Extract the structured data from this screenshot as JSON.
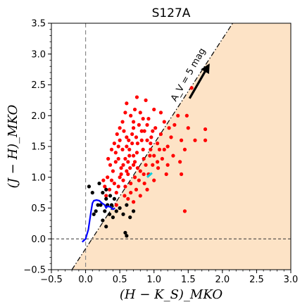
{
  "chart_data": {
    "type": "scatter",
    "title": "S127A",
    "xlabel": "(H − K_S)_MKO",
    "ylabel": "(J − H)_MKO",
    "xlim": [
      -0.5,
      3.0
    ],
    "ylim": [
      -0.5,
      3.5
    ],
    "x_ticks": [
      "−0.5",
      "0.0",
      "0.5",
      "1.0",
      "1.5",
      "2.0",
      "2.5",
      "3.0"
    ],
    "x_tick_values": [
      -0.5,
      0.0,
      0.5,
      1.0,
      1.5,
      2.0,
      2.5,
      3.0
    ],
    "y_ticks": [
      "−0.5",
      "0.0",
      "0.5",
      "1.0",
      "1.5",
      "2.0",
      "2.5",
      "3.0",
      "3.5"
    ],
    "y_tick_values": [
      -0.5,
      0.0,
      0.5,
      1.0,
      1.5,
      2.0,
      2.5,
      3.0,
      3.5
    ],
    "grid": false,
    "colors": {
      "region_fill": "#fde3c6",
      "red_points": "#ff0000",
      "black_points": "#000000",
      "main_sequence": "#0000ff",
      "cyan_segment": "#00d0e0"
    },
    "reddening_line": {
      "points": [
        [
          -0.2,
          -0.5
        ],
        [
          2.15,
          3.5
        ]
      ]
    },
    "shaded_region": {
      "polygon": [
        [
          -0.2,
          -0.5
        ],
        [
          2.15,
          3.5
        ],
        [
          3.0,
          3.5
        ],
        [
          3.0,
          -0.5
        ]
      ]
    },
    "reference_lines": {
      "vertical_x": 0.0,
      "horizontal_y": 0.0
    },
    "annotation": {
      "text": "A_V = 5 mag",
      "arrow_from": [
        1.52,
        2.28
      ],
      "arrow_to": [
        1.8,
        2.82
      ]
    },
    "main_sequence_curve": {
      "x": [
        -0.05,
        0.0,
        0.04,
        0.06,
        0.08,
        0.1,
        0.12,
        0.16,
        0.2,
        0.24,
        0.28,
        0.3,
        0.32,
        0.36,
        0.4,
        0.43
      ],
      "y": [
        -0.05,
        0.0,
        0.15,
        0.3,
        0.45,
        0.58,
        0.62,
        0.63,
        0.62,
        0.58,
        0.55,
        0.5,
        0.53,
        0.52,
        0.48,
        0.5
      ]
    },
    "cyan_segment": {
      "x": [
        0.9,
        0.97
      ],
      "y": [
        1.0,
        1.07
      ]
    },
    "series": [
      {
        "color": "red",
        "points": [
          [
            0.55,
            0.95
          ],
          [
            0.62,
            1.05
          ],
          [
            0.7,
            1.2
          ],
          [
            0.48,
            0.85
          ],
          [
            0.58,
            1.3
          ],
          [
            0.75,
            1.4
          ],
          [
            0.66,
            0.9
          ],
          [
            0.8,
            1.1
          ],
          [
            0.52,
            1.15
          ],
          [
            0.6,
            1.5
          ],
          [
            0.72,
            1.0
          ],
          [
            0.85,
            1.3
          ],
          [
            0.9,
            1.6
          ],
          [
            0.68,
            1.7
          ],
          [
            0.78,
            1.85
          ],
          [
            0.95,
            1.45
          ],
          [
            1.05,
            1.55
          ],
          [
            0.5,
            1.0
          ],
          [
            0.45,
            0.75
          ],
          [
            0.42,
            0.9
          ],
          [
            0.57,
            0.7
          ],
          [
            0.63,
            1.6
          ],
          [
            0.7,
            1.9
          ],
          [
            0.82,
            1.6
          ],
          [
            0.88,
            1.2
          ],
          [
            0.98,
            1.2
          ],
          [
            1.0,
            1.35
          ],
          [
            1.1,
            1.7
          ],
          [
            1.15,
            1.9
          ],
          [
            1.2,
            1.5
          ],
          [
            0.76,
            1.55
          ],
          [
            0.64,
            1.35
          ],
          [
            0.54,
            1.45
          ],
          [
            0.6,
            1.1
          ],
          [
            0.74,
            0.8
          ],
          [
            0.86,
            0.9
          ],
          [
            0.92,
            1.05
          ],
          [
            0.48,
            1.3
          ],
          [
            0.4,
            1.1
          ],
          [
            0.38,
            0.95
          ],
          [
            0.35,
            0.8
          ],
          [
            0.44,
            1.4
          ],
          [
            0.5,
            1.6
          ],
          [
            0.56,
            1.75
          ],
          [
            0.66,
            2.0
          ],
          [
            0.72,
            2.1
          ],
          [
            0.8,
            2.05
          ],
          [
            0.9,
            1.85
          ],
          [
            1.02,
            1.8
          ],
          [
            1.12,
            1.3
          ],
          [
            1.2,
            1.2
          ],
          [
            1.25,
            1.65
          ],
          [
            1.3,
            1.85
          ],
          [
            1.35,
            2.0
          ],
          [
            1.4,
            1.6
          ],
          [
            1.45,
            1.45
          ],
          [
            0.6,
            2.2
          ],
          [
            0.54,
            1.9
          ],
          [
            0.46,
            1.7
          ],
          [
            0.36,
            1.2
          ],
          [
            0.32,
            1.0
          ],
          [
            0.3,
            0.7
          ],
          [
            0.28,
            0.85
          ],
          [
            0.66,
            0.75
          ],
          [
            0.78,
            0.95
          ],
          [
            0.84,
            1.45
          ],
          [
            0.96,
            1.65
          ],
          [
            1.08,
            1.45
          ],
          [
            0.62,
            1.25
          ],
          [
            0.7,
            1.35
          ],
          [
            0.76,
            1.15
          ],
          [
            0.58,
            0.85
          ],
          [
            0.52,
            1.05
          ],
          [
            0.64,
            1.45
          ],
          [
            0.74,
            1.65
          ],
          [
            0.86,
            1.75
          ],
          [
            0.94,
            1.35
          ],
          [
            1.06,
            1.15
          ],
          [
            1.18,
            1.05
          ],
          [
            1.28,
            1.35
          ],
          [
            1.38,
            1.25
          ],
          [
            1.5,
            1.8
          ],
          [
            1.6,
            1.6
          ],
          [
            1.75,
            1.78
          ],
          [
            1.75,
            1.6
          ],
          [
            1.55,
            2.45
          ],
          [
            1.48,
            2.0
          ],
          [
            1.4,
            1.05
          ],
          [
            1.45,
            0.45
          ],
          [
            0.45,
            0.55
          ],
          [
            0.68,
            1.55
          ],
          [
            0.82,
            1.75
          ],
          [
            0.92,
            1.95
          ],
          [
            1.0,
            2.1
          ],
          [
            1.1,
            2.05
          ],
          [
            0.88,
            2.25
          ],
          [
            0.75,
            2.3
          ],
          [
            0.58,
            2.05
          ],
          [
            0.5,
            1.8
          ],
          [
            0.42,
            1.55
          ],
          [
            0.38,
            1.45
          ],
          [
            0.33,
            1.3
          ],
          [
            0.26,
            0.95
          ],
          [
            0.62,
            0.65
          ],
          [
            0.7,
            0.6
          ],
          [
            0.8,
            0.7
          ],
          [
            0.9,
            0.8
          ],
          [
            1.0,
            0.95
          ],
          [
            0.55,
            1.2
          ],
          [
            0.65,
            1.15
          ],
          [
            0.72,
            1.25
          ],
          [
            0.85,
            1.05
          ],
          [
            0.95,
            1.55
          ],
          [
            1.05,
            1.25
          ],
          [
            1.15,
            1.45
          ],
          [
            1.22,
            1.8
          ],
          [
            0.98,
            1.75
          ],
          [
            0.84,
            1.95
          ],
          [
            0.7,
            1.8
          ],
          [
            0.6,
            1.65
          ],
          [
            0.48,
            1.5
          ],
          [
            0.44,
            1.25
          ]
        ]
      },
      {
        "color": "black",
        "points": [
          [
            0.2,
            0.9
          ],
          [
            0.25,
            0.75
          ],
          [
            0.3,
            0.65
          ],
          [
            0.22,
            0.55
          ],
          [
            0.28,
            0.45
          ],
          [
            0.35,
            0.4
          ],
          [
            0.4,
            0.35
          ],
          [
            0.32,
            0.55
          ],
          [
            0.18,
            0.55
          ],
          [
            0.15,
            0.45
          ],
          [
            0.12,
            0.4
          ],
          [
            0.25,
            0.3
          ],
          [
            0.38,
            0.55
          ],
          [
            0.45,
            0.45
          ],
          [
            0.5,
            0.5
          ],
          [
            0.55,
            0.4
          ],
          [
            0.6,
            0.55
          ],
          [
            0.65,
            0.35
          ],
          [
            0.58,
            0.1
          ],
          [
            0.6,
            0.05
          ],
          [
            0.7,
            0.45
          ],
          [
            0.3,
            0.8
          ],
          [
            0.36,
            0.7
          ],
          [
            0.42,
            0.65
          ],
          [
            0.05,
            0.85
          ],
          [
            0.1,
            0.75
          ],
          [
            0.3,
            0.2
          ]
        ]
      }
    ]
  }
}
